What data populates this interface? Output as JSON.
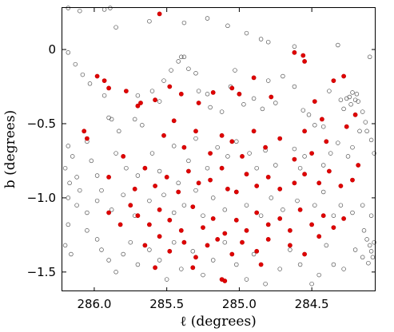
{
  "chart_data": {
    "type": "scatter",
    "xlabel": "ℓ (degrees)",
    "ylabel": "b (degrees)",
    "xlim": [
      286.22,
      284.06
    ],
    "ylim": [
      -1.63,
      0.28
    ],
    "x_reversed": true,
    "grid": false,
    "x_ticks": [
      {
        "value": 286.0,
        "label": "286.0"
      },
      {
        "value": 285.5,
        "label": "285.5"
      },
      {
        "value": 285.0,
        "label": "285.0"
      },
      {
        "value": 284.5,
        "label": "284.5"
      }
    ],
    "y_ticks": [
      {
        "value": 0,
        "label": "0"
      },
      {
        "value": -0.5,
        "label": "−0.5"
      },
      {
        "value": -1.0,
        "label": "−1.0"
      },
      {
        "value": -1.5,
        "label": "−1.5"
      }
    ],
    "colors": {
      "filled": "#e00000",
      "filled_edge": "#c00000",
      "open_edge": "#555555"
    },
    "series": [
      {
        "marker": "open-circle",
        "points": [
          [
            286.18,
            0.28
          ],
          [
            286.1,
            0.26
          ],
          [
            285.93,
            0.27
          ],
          [
            285.89,
            0.28
          ],
          [
            285.85,
            0.15
          ],
          [
            285.62,
            0.19
          ],
          [
            285.38,
            0.18
          ],
          [
            285.22,
            0.21
          ],
          [
            285.08,
            0.16
          ],
          [
            284.95,
            0.11
          ],
          [
            284.85,
            0.07
          ],
          [
            284.8,
            0.05
          ],
          [
            284.62,
            0.02
          ],
          [
            284.32,
            0.03
          ],
          [
            284.1,
            -0.05
          ],
          [
            286.18,
            -0.02
          ],
          [
            286.13,
            -0.1
          ],
          [
            286.08,
            -0.17
          ],
          [
            286.03,
            -0.23
          ],
          [
            285.93,
            -0.31
          ],
          [
            285.9,
            -0.46
          ],
          [
            285.88,
            -0.47
          ],
          [
            285.83,
            -0.55
          ],
          [
            285.72,
            -0.47
          ],
          [
            285.7,
            -0.31
          ],
          [
            285.67,
            -0.51
          ],
          [
            285.6,
            -0.28
          ],
          [
            285.55,
            -0.35
          ],
          [
            285.52,
            -0.21
          ],
          [
            285.47,
            -0.14
          ],
          [
            285.42,
            -0.08
          ],
          [
            285.4,
            -0.05
          ],
          [
            285.38,
            -0.05
          ],
          [
            285.35,
            -0.13
          ],
          [
            285.3,
            -0.16
          ],
          [
            285.28,
            -0.28
          ],
          [
            285.22,
            -0.3
          ],
          [
            285.2,
            -0.39
          ],
          [
            285.12,
            -0.42
          ],
          [
            285.06,
            -0.25
          ],
          [
            285.03,
            -0.14
          ],
          [
            285.0,
            -0.3
          ],
          [
            284.97,
            -0.37
          ],
          [
            284.9,
            -0.33
          ],
          [
            284.84,
            -0.4
          ],
          [
            284.8,
            -0.21
          ],
          [
            284.75,
            -0.36
          ],
          [
            284.7,
            -0.18
          ],
          [
            284.62,
            -0.25
          ],
          [
            284.56,
            -0.41
          ],
          [
            284.52,
            -0.44
          ],
          [
            284.48,
            -0.51
          ],
          [
            284.42,
            -0.52
          ],
          [
            284.38,
            -0.28
          ],
          [
            284.3,
            -0.34
          ],
          [
            284.28,
            -0.4
          ],
          [
            284.26,
            -0.33
          ],
          [
            284.24,
            -0.32
          ],
          [
            284.22,
            -0.29
          ],
          [
            284.2,
            -0.34
          ],
          [
            284.19,
            -0.3
          ],
          [
            284.18,
            -0.35
          ],
          [
            284.23,
            -0.37
          ],
          [
            284.15,
            -0.42
          ],
          [
            284.13,
            -0.49
          ],
          [
            284.12,
            -0.55
          ],
          [
            284.09,
            -0.61
          ],
          [
            284.07,
            -0.7
          ],
          [
            284.17,
            -0.55
          ],
          [
            284.22,
            -0.66
          ],
          [
            284.25,
            -0.72
          ],
          [
            284.32,
            -0.63
          ],
          [
            284.37,
            -0.7
          ],
          [
            284.42,
            -0.78
          ],
          [
            286.18,
            -0.65
          ],
          [
            286.15,
            -0.72
          ],
          [
            286.2,
            -0.8
          ],
          [
            286.12,
            -0.86
          ],
          [
            286.17,
            -0.9
          ],
          [
            286.1,
            -0.95
          ],
          [
            286.05,
            -0.62
          ],
          [
            286.02,
            -0.75
          ],
          [
            285.98,
            -0.85
          ],
          [
            285.95,
            -0.95
          ],
          [
            285.85,
            -0.7
          ],
          [
            285.78,
            -0.8
          ],
          [
            285.7,
            -0.85
          ],
          [
            285.6,
            -0.7
          ],
          [
            285.55,
            -0.82
          ],
          [
            285.45,
            -0.65
          ],
          [
            285.42,
            -0.9
          ],
          [
            285.35,
            -0.75
          ],
          [
            285.3,
            -0.6
          ],
          [
            285.22,
            -0.8
          ],
          [
            285.15,
            -0.66
          ],
          [
            285.08,
            -0.72
          ],
          [
            285.02,
            -0.62
          ],
          [
            284.93,
            -0.7
          ],
          [
            284.88,
            -0.8
          ],
          [
            284.82,
            -0.68
          ],
          [
            284.75,
            -0.78
          ],
          [
            284.62,
            -0.67
          ],
          [
            284.58,
            -0.8
          ],
          [
            284.55,
            -0.72
          ],
          [
            286.18,
            -1.0
          ],
          [
            286.12,
            -1.05
          ],
          [
            286.05,
            -1.1
          ],
          [
            285.98,
            -1.02
          ],
          [
            285.88,
            -1.08
          ],
          [
            285.8,
            -0.98
          ],
          [
            285.72,
            -1.12
          ],
          [
            285.62,
            -1.02
          ],
          [
            285.52,
            -0.98
          ],
          [
            285.45,
            -1.1
          ],
          [
            285.38,
            -1.05
          ],
          [
            285.3,
            -0.95
          ],
          [
            285.25,
            -1.12
          ],
          [
            285.18,
            -1.0
          ],
          [
            285.1,
            -1.08
          ],
          [
            285.02,
            -0.96
          ],
          [
            284.95,
            -1.05
          ],
          [
            284.85,
            -1.12
          ],
          [
            284.78,
            -1.0
          ],
          [
            284.7,
            -1.08
          ],
          [
            284.6,
            -1.02
          ],
          [
            284.48,
            -1.05
          ],
          [
            284.42,
            -0.96
          ],
          [
            284.35,
            -1.12
          ],
          [
            284.3,
            -1.05
          ],
          [
            284.22,
            -1.1
          ],
          [
            284.15,
            -1.05
          ],
          [
            284.09,
            -1.12
          ],
          [
            286.18,
            -1.18
          ],
          [
            286.2,
            -1.32
          ],
          [
            286.16,
            -1.38
          ],
          [
            286.05,
            -1.22
          ],
          [
            285.98,
            -1.28
          ],
          [
            285.95,
            -1.35
          ],
          [
            285.9,
            -1.42
          ],
          [
            285.85,
            -1.5
          ],
          [
            285.8,
            -1.38
          ],
          [
            285.75,
            -1.3
          ],
          [
            285.7,
            -1.45
          ],
          [
            285.62,
            -1.35
          ],
          [
            285.55,
            -1.42
          ],
          [
            285.5,
            -1.55
          ],
          [
            285.45,
            -1.3
          ],
          [
            285.4,
            -1.48
          ],
          [
            285.32,
            -1.36
          ],
          [
            285.25,
            -1.52
          ],
          [
            285.18,
            -1.42
          ],
          [
            285.1,
            -1.3
          ],
          [
            285.02,
            -1.45
          ],
          [
            284.95,
            -1.55
          ],
          [
            284.9,
            -1.38
          ],
          [
            284.82,
            -1.58
          ],
          [
            284.72,
            -1.48
          ],
          [
            284.65,
            -1.35
          ],
          [
            284.58,
            -1.45
          ],
          [
            284.5,
            -1.58
          ],
          [
            284.45,
            -1.52
          ],
          [
            284.4,
            -1.32
          ],
          [
            284.35,
            -1.45
          ],
          [
            284.28,
            -1.48
          ],
          [
            284.2,
            -1.35
          ],
          [
            284.15,
            -1.4
          ],
          [
            284.12,
            -1.28
          ],
          [
            284.1,
            -1.32
          ],
          [
            284.09,
            -1.36
          ],
          [
            284.08,
            -1.4
          ],
          [
            284.07,
            -1.3
          ],
          [
            284.11,
            -1.44
          ],
          [
            284.14,
            -1.22
          ]
        ]
      },
      {
        "marker": "filled-circle",
        "points": [
          [
            285.55,
            0.24
          ],
          [
            284.62,
            -0.02
          ],
          [
            284.56,
            -0.04
          ],
          [
            285.98,
            -0.18
          ],
          [
            285.93,
            -0.21
          ],
          [
            285.9,
            -0.26
          ],
          [
            285.7,
            -0.38
          ],
          [
            285.58,
            -0.34
          ],
          [
            285.48,
            -0.25
          ],
          [
            285.4,
            -0.3
          ],
          [
            285.28,
            -0.36
          ],
          [
            285.18,
            -0.29
          ],
          [
            285.05,
            -0.26
          ],
          [
            285.0,
            -0.3
          ],
          [
            284.9,
            -0.19
          ],
          [
            284.78,
            -0.32
          ],
          [
            284.55,
            -0.08
          ],
          [
            284.48,
            -0.35
          ],
          [
            284.43,
            -0.47
          ],
          [
            284.35,
            -0.21
          ],
          [
            284.28,
            -0.18
          ],
          [
            284.2,
            -0.44
          ],
          [
            284.26,
            -0.52
          ],
          [
            285.78,
            -0.28
          ],
          [
            285.68,
            -0.36
          ],
          [
            285.52,
            -0.58
          ],
          [
            285.45,
            -0.48
          ],
          [
            285.38,
            -0.66
          ],
          [
            285.3,
            -0.55
          ],
          [
            285.2,
            -0.7
          ],
          [
            285.12,
            -0.58
          ],
          [
            285.05,
            -0.62
          ],
          [
            284.98,
            -0.72
          ],
          [
            284.9,
            -0.55
          ],
          [
            284.82,
            -0.66
          ],
          [
            284.72,
            -0.6
          ],
          [
            284.62,
            -0.74
          ],
          [
            284.55,
            -0.55
          ],
          [
            284.5,
            -0.7
          ],
          [
            284.4,
            -0.62
          ],
          [
            286.07,
            -0.55
          ],
          [
            286.05,
            -0.6
          ],
          [
            285.9,
            -0.86
          ],
          [
            285.8,
            -0.72
          ],
          [
            285.72,
            -0.94
          ],
          [
            285.65,
            -0.8
          ],
          [
            285.58,
            -0.92
          ],
          [
            285.5,
            -0.86
          ],
          [
            285.42,
            -0.96
          ],
          [
            285.35,
            -0.82
          ],
          [
            285.28,
            -0.9
          ],
          [
            285.2,
            -0.88
          ],
          [
            285.12,
            -0.8
          ],
          [
            285.08,
            -0.94
          ],
          [
            285.02,
            -0.96
          ],
          [
            284.95,
            -0.84
          ],
          [
            284.88,
            -0.92
          ],
          [
            284.8,
            -0.86
          ],
          [
            284.72,
            -0.94
          ],
          [
            284.62,
            -0.9
          ],
          [
            284.55,
            -0.84
          ],
          [
            284.45,
            -0.9
          ],
          [
            284.38,
            -0.82
          ],
          [
            284.3,
            -0.92
          ],
          [
            284.22,
            -0.88
          ],
          [
            284.18,
            -0.78
          ],
          [
            285.9,
            -1.1
          ],
          [
            285.82,
            -1.18
          ],
          [
            285.75,
            -1.05
          ],
          [
            285.7,
            -1.12
          ],
          [
            285.62,
            -1.18
          ],
          [
            285.55,
            -1.08
          ],
          [
            285.48,
            -1.15
          ],
          [
            285.4,
            -1.22
          ],
          [
            285.32,
            -1.06
          ],
          [
            285.25,
            -1.2
          ],
          [
            285.18,
            -1.14
          ],
          [
            285.1,
            -1.24
          ],
          [
            285.02,
            -1.15
          ],
          [
            284.95,
            -1.22
          ],
          [
            284.88,
            -1.1
          ],
          [
            284.8,
            -1.18
          ],
          [
            284.72,
            -1.14
          ],
          [
            284.65,
            -1.22
          ],
          [
            284.58,
            -1.08
          ],
          [
            284.5,
            -1.18
          ],
          [
            284.42,
            -1.12
          ],
          [
            284.35,
            -1.2
          ],
          [
            284.28,
            -1.14
          ],
          [
            285.65,
            -1.32
          ],
          [
            285.55,
            -1.26
          ],
          [
            285.48,
            -1.36
          ],
          [
            285.38,
            -1.3
          ],
          [
            285.3,
            -1.4
          ],
          [
            285.22,
            -1.32
          ],
          [
            285.15,
            -1.28
          ],
          [
            285.05,
            -1.38
          ],
          [
            284.98,
            -1.3
          ],
          [
            284.88,
            -1.36
          ],
          [
            284.8,
            -1.28
          ],
          [
            284.65,
            -1.32
          ],
          [
            284.55,
            -1.38
          ],
          [
            284.45,
            -1.26
          ],
          [
            285.58,
            -1.47
          ],
          [
            285.32,
            -1.47
          ],
          [
            285.12,
            -1.55
          ],
          [
            285.1,
            -1.56
          ],
          [
            284.85,
            -1.45
          ]
        ]
      }
    ]
  }
}
